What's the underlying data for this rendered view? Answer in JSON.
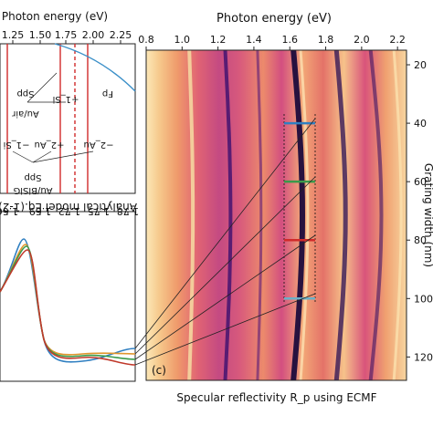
{
  "chart_data": [
    {
      "type": "heatmap",
      "panel_label": "(c)",
      "title": "Photon energy (eV)",
      "xlabel": "Specular reflectivity R_p using ECMF",
      "ylabel": "Grating width (nm)",
      "x_ticks": [
        "0.8",
        "1.0",
        "1.2",
        "1.4",
        "1.6",
        "1.8",
        "2.0",
        "2.2"
      ],
      "x_range": [
        0.8,
        2.25
      ],
      "y_ticks": [
        "20",
        "40",
        "60",
        "80",
        "100",
        "120"
      ],
      "y_range": [
        15,
        128
      ],
      "markers": [
        {
          "width": 40,
          "color": "#2f7fc1"
        },
        {
          "width": 60,
          "color": "#3a9a4a"
        },
        {
          "width": 80,
          "color": "#d12a2a"
        },
        {
          "width": 100,
          "color": "#6ab0c8"
        }
      ],
      "colormap": "magma"
    },
    {
      "type": "line",
      "title": "Photon energy (eV)",
      "x_ticks": [
        "1.25",
        "1.50",
        "1.75",
        "2.00",
        "2.25"
      ],
      "annotations": [
        "Fp",
        "Spp",
        "Au/air",
        "+1_Si",
        "−1_Si",
        "+2_Au",
        "−2_Au",
        "Spp",
        "Au/BiSiG"
      ],
      "caption": "Analytical model Eq.(1-2)"
    },
    {
      "type": "line",
      "x_ticks": [
        "1.66",
        "1.69",
        "1.72",
        "1.75",
        "1.78"
      ],
      "series": [
        {
          "color": "#2f7fc1"
        },
        {
          "color": "#e0962e"
        },
        {
          "color": "#3a9a4a"
        },
        {
          "color": "#c0392b"
        }
      ]
    }
  ]
}
